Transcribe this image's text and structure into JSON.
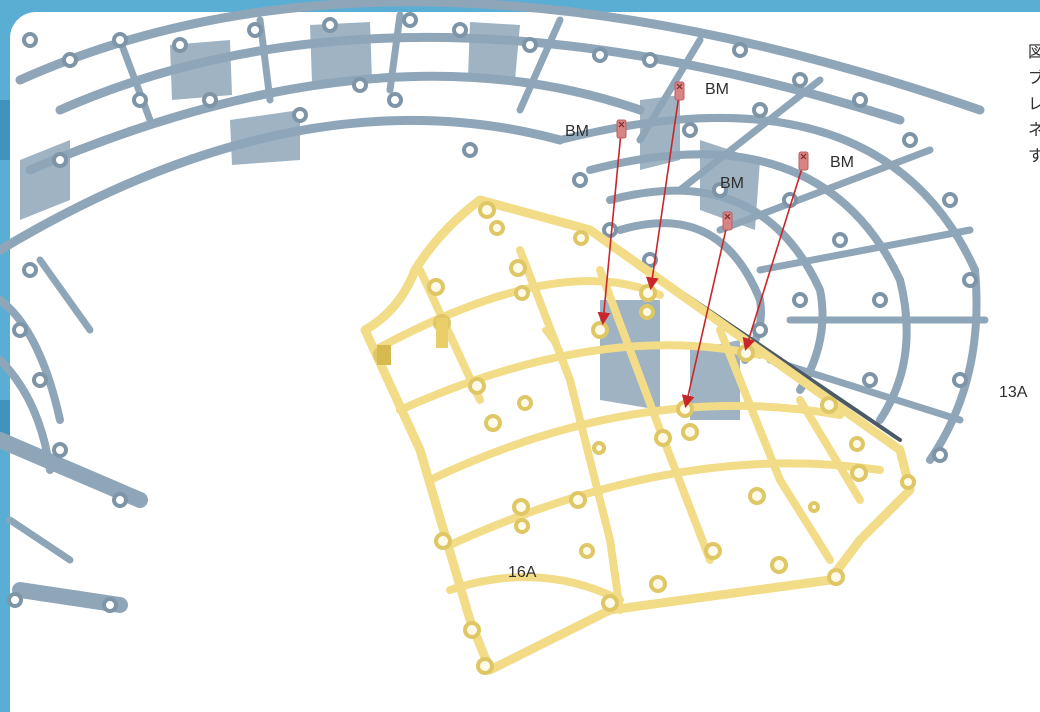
{
  "labels": {
    "part_gray": "13A",
    "part_yellow": "16A",
    "screw": "BM"
  },
  "side_text": [
    "図",
    "ブ",
    "レ",
    "ネ",
    "す"
  ],
  "colors": {
    "background": "#5aaed3",
    "gray_part": "#8fa6b8",
    "yellow_part": "#f2dc88",
    "screw": "#d98484",
    "arrow": "#c8262a"
  }
}
